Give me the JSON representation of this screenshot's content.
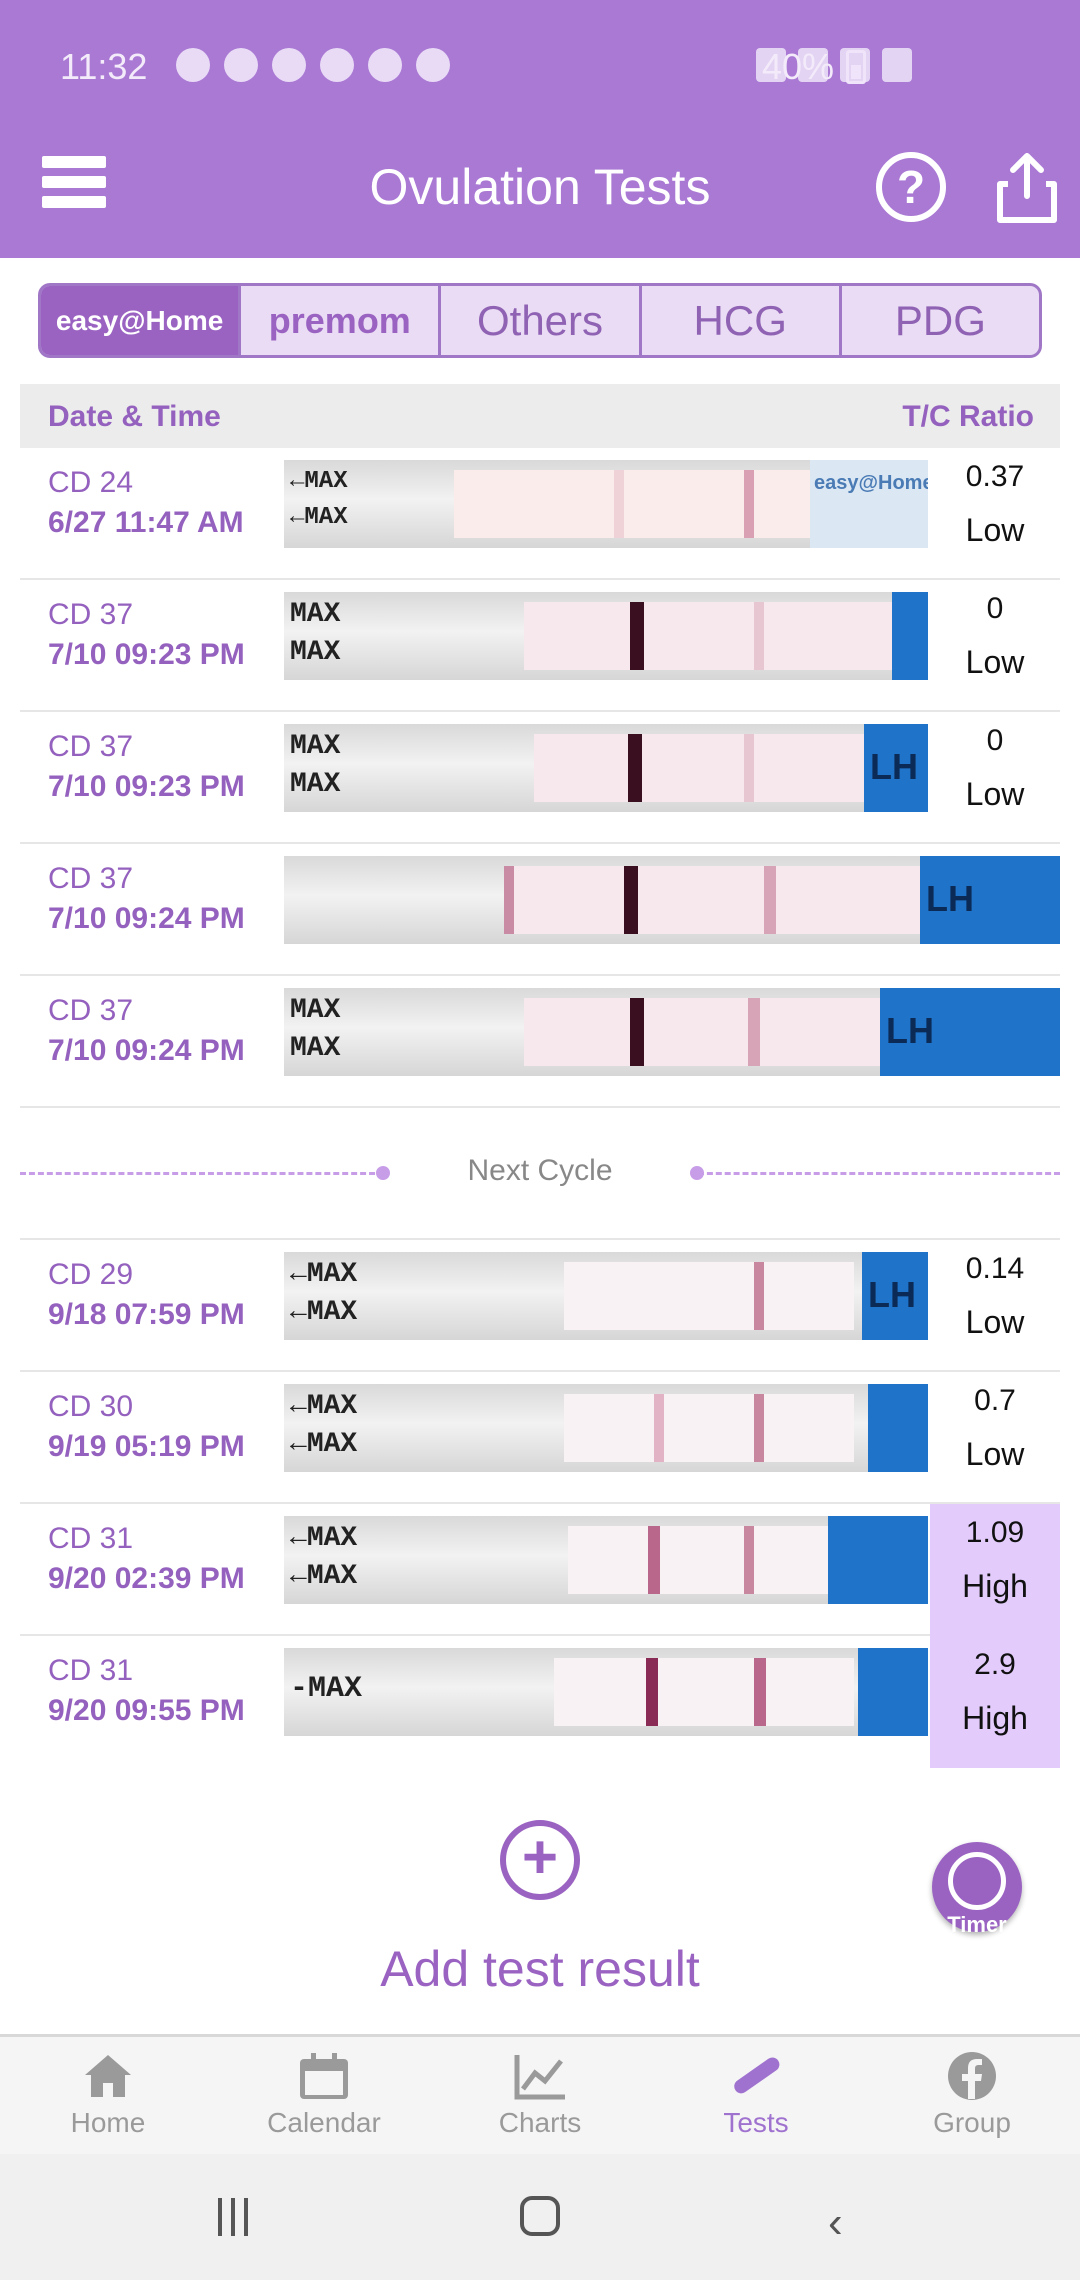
{
  "status_bar": {
    "time": "11:32",
    "battery": "40%"
  },
  "app_bar": {
    "title": "Ovulation Tests"
  },
  "brand_tabs": [
    {
      "label": "easy@Home"
    },
    {
      "label": "premom"
    },
    {
      "label": "Others"
    },
    {
      "label": "HCG"
    },
    {
      "label": "PDG"
    }
  ],
  "table_header": {
    "left": "Date & Time",
    "right": "T/C Ratio"
  },
  "rows_first": [
    {
      "cd": "CD 24",
      "datetime": "6/27  11:47 AM",
      "ratio": "0.37",
      "level": "Low"
    },
    {
      "cd": "CD 37",
      "datetime": "7/10  09:23 PM",
      "ratio": "0",
      "level": "Low"
    },
    {
      "cd": "CD 37",
      "datetime": "7/10  09:23 PM",
      "ratio": "0",
      "level": "Low"
    },
    {
      "cd": "CD 37",
      "datetime": "7/10  09:24 PM"
    },
    {
      "cd": "CD 37",
      "datetime": "7/10  09:24 PM"
    }
  ],
  "next_cycle_label": "Next Cycle",
  "rows_second": [
    {
      "cd": "CD 29",
      "datetime": "9/18  07:59 PM",
      "ratio": "0.14",
      "level": "Low"
    },
    {
      "cd": "CD 30",
      "datetime": "9/19  05:19 PM",
      "ratio": "0.7",
      "level": "Low"
    },
    {
      "cd": "CD 31",
      "datetime": "9/20  02:39 PM",
      "ratio": "1.09",
      "level": "High"
    },
    {
      "cd": "CD 31",
      "datetime": "9/20  09:55 PM",
      "ratio": "2.9",
      "level": "High"
    }
  ],
  "strip_text": {
    "max": "MAX",
    "lh": "LH",
    "brand_label": "easy@Home"
  },
  "add": {
    "label": "Add test result"
  },
  "timer": {
    "label": "Timer"
  },
  "bottom_nav": [
    {
      "label": "Home"
    },
    {
      "label": "Calendar"
    },
    {
      "label": "Charts"
    },
    {
      "label": "Tests"
    },
    {
      "label": "Group"
    }
  ],
  "colors": {
    "primary": "#a979d4",
    "accent": "#9a63c2",
    "high_bg": "#e3ccfb"
  }
}
